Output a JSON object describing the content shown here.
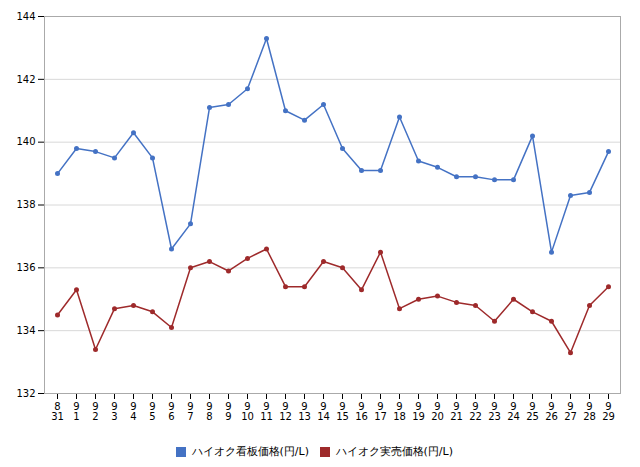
{
  "chart_data": {
    "type": "line",
    "categories": [
      "8\n31",
      "9\n1",
      "9\n2",
      "9\n3",
      "9\n4",
      "9\n5",
      "9\n6",
      "9\n7",
      "9\n8",
      "9\n9",
      "9\n10",
      "9\n11",
      "9\n12",
      "9\n13",
      "9\n14",
      "9\n15",
      "9\n16",
      "9\n17",
      "9\n18",
      "9\n19",
      "9\n20",
      "9\n21",
      "9\n22",
      "9\n23",
      "9\n24",
      "9\n25",
      "9\n26",
      "9\n27",
      "9\n28",
      "9\n29"
    ],
    "series": [
      {
        "name": "ハイオク看板価格(円/L)",
        "color": "#4472C4",
        "values": [
          139.0,
          139.8,
          139.7,
          139.5,
          140.3,
          139.5,
          136.6,
          137.4,
          141.1,
          141.2,
          141.7,
          143.3,
          141.0,
          140.7,
          141.2,
          139.8,
          139.1,
          139.1,
          140.8,
          139.4,
          139.2,
          138.9,
          138.9,
          138.8,
          138.8,
          140.2,
          136.5,
          138.3,
          138.4,
          139.7
        ]
      },
      {
        "name": "ハイオク実売価格(円/L)",
        "color": "#9E2A2B",
        "values": [
          134.5,
          135.3,
          133.4,
          134.7,
          134.8,
          134.6,
          134.1,
          136.0,
          136.2,
          135.9,
          136.3,
          136.6,
          135.4,
          135.4,
          136.2,
          136.0,
          135.3,
          136.5,
          134.7,
          135.0,
          135.1,
          134.9,
          134.8,
          134.3,
          135.0,
          134.6,
          134.3,
          133.3,
          134.8,
          135.4
        ]
      }
    ],
    "ylim": [
      132,
      144
    ],
    "yticks": [
      132,
      134,
      136,
      138,
      140,
      142,
      144
    ],
    "grid": true,
    "marker": "circle",
    "legend": "bottom"
  }
}
